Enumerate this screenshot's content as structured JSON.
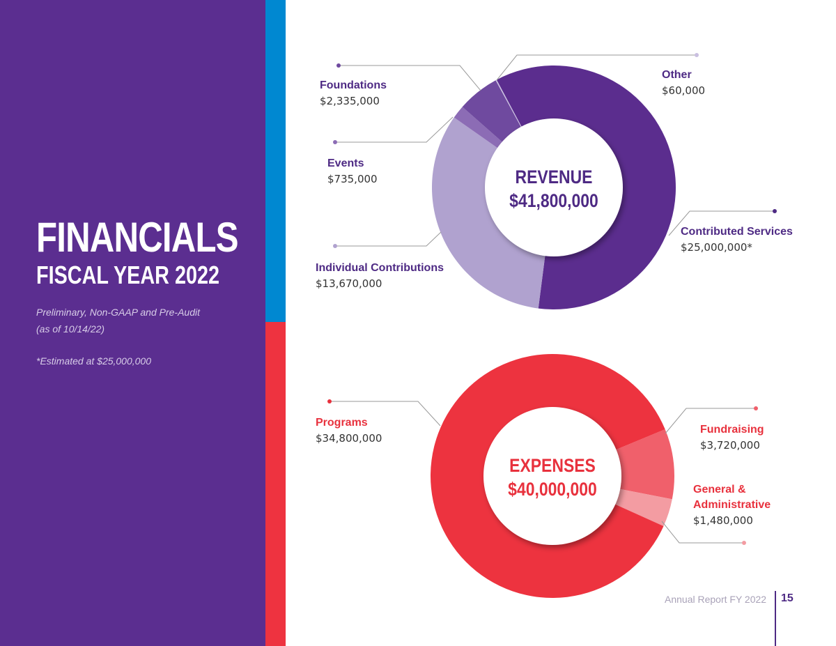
{
  "sidebar": {
    "title": "FINANCIALS",
    "subtitle": "FISCAL YEAR 2022",
    "note1": "Preliminary, Non-GAAP and Pre-Audit",
    "note2": "(as of 10/14/22)",
    "note3": "*Estimated at $25,000,000"
  },
  "footer": {
    "label": "Annual Report FY 2022",
    "page": "15"
  },
  "colors": {
    "purple": "#5b2e90",
    "blue": "#0088d1",
    "red": "#ee3340"
  },
  "chart_data": [
    {
      "type": "pie",
      "title": "REVENUE",
      "total": "$41,800,000",
      "categories": [
        "Contributed Services",
        "Individual Contributions",
        "Events",
        "Foundations",
        "Other"
      ],
      "values": [
        25000000,
        13670000,
        735000,
        2335000,
        60000
      ],
      "value_labels": [
        "$25,000,000*",
        "$13,670,000",
        "$735,000",
        "$2,335,000",
        "$60,000"
      ],
      "colors": [
        "#5b2d8e",
        "#b0a2cf",
        "#8c6cb5",
        "#6f4a9f",
        "#c9bfe0"
      ]
    },
    {
      "type": "pie",
      "title": "EXPENSES",
      "total": "$40,000,000",
      "categories": [
        "Fundraising",
        "General & Administrative",
        "Programs"
      ],
      "label_lines": [
        [
          "Fundraising"
        ],
        [
          "General &",
          "Administrative"
        ],
        [
          "Programs"
        ]
      ],
      "values": [
        3720000,
        1480000,
        34800000
      ],
      "value_labels": [
        "$3,720,000",
        "$1,480,000",
        "$34,800,000"
      ],
      "colors": [
        "#f0606b",
        "#f39ca2",
        "#ed333f"
      ]
    }
  ]
}
